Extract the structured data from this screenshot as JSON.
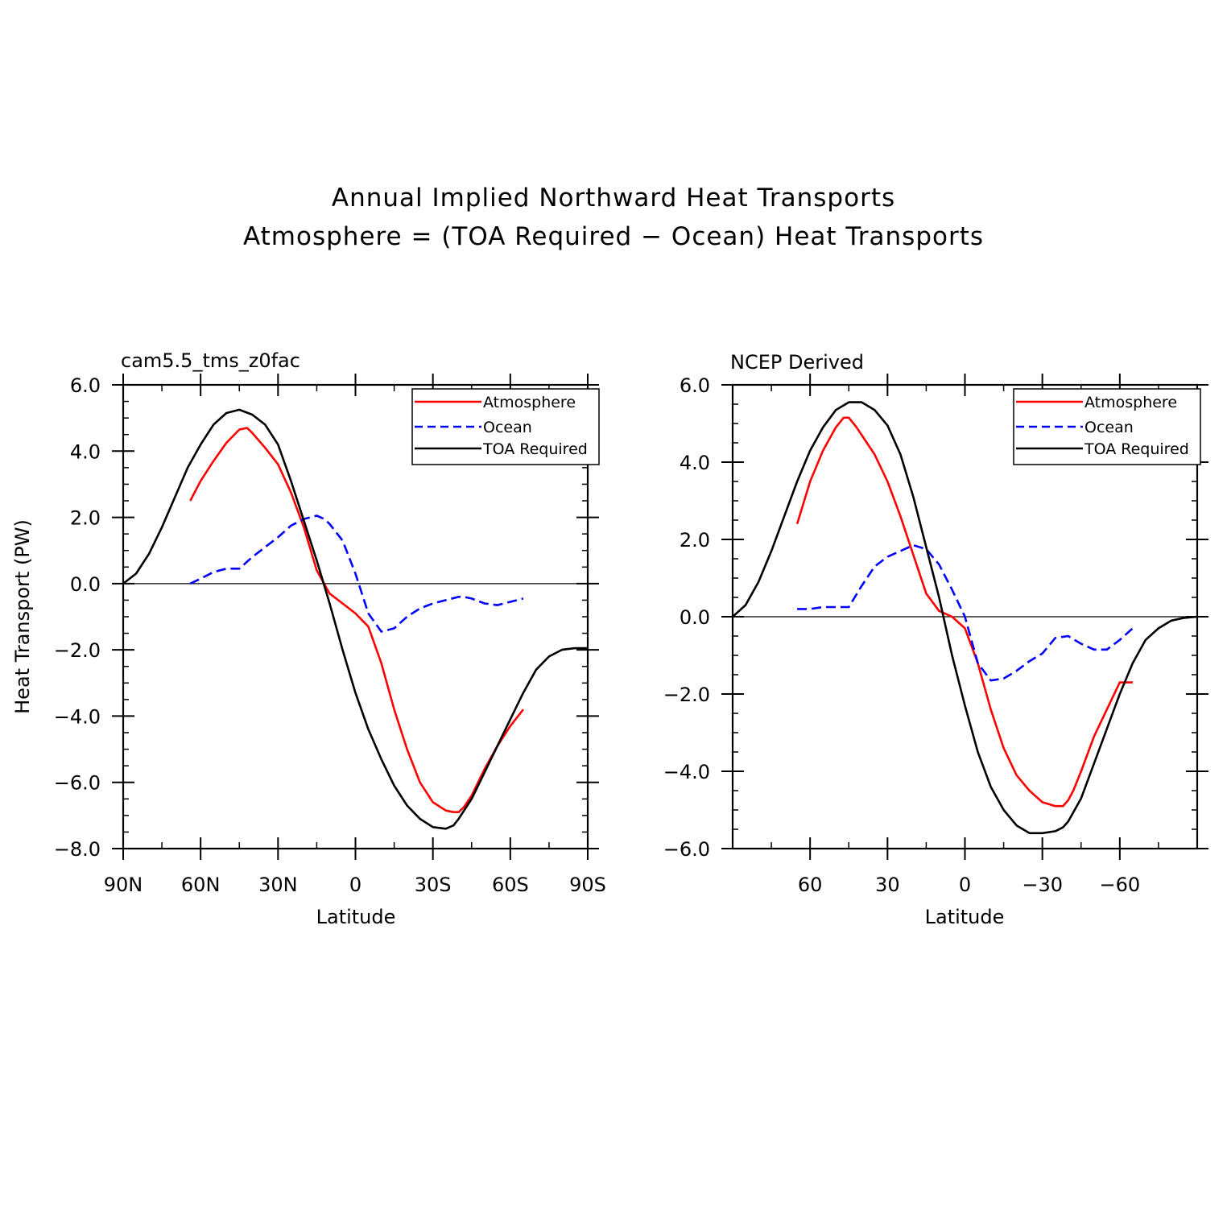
{
  "figure": {
    "title_lines": [
      "Annual Implied Northward Heat Transports",
      "Atmosphere = (TOA Required − Ocean) Heat Transports"
    ]
  },
  "colors": {
    "atmosphere": "#ff0000",
    "ocean": "#0000ff",
    "toa": "#000000"
  },
  "chart_data": [
    {
      "type": "line",
      "title": "cam5.5_tms_z0fac",
      "xlabel": "Latitude",
      "ylabel": "Heat Transport (PW)",
      "xlim": [
        90,
        -90
      ],
      "ylim": [
        -8,
        6
      ],
      "x_ticks": [
        90,
        60,
        30,
        0,
        -30,
        -60,
        -90
      ],
      "x_tick_labels": [
        "90N",
        "60N",
        "30N",
        "0",
        "30S",
        "60S",
        "90S"
      ],
      "y_ticks": [
        6,
        4,
        2,
        0,
        -2,
        -4,
        -6,
        -8
      ],
      "y_tick_labels": [
        "6.0",
        "4.0",
        "2.0",
        "0.0",
        "−2.0",
        "−4.0",
        "−6.0",
        "−8.0"
      ],
      "legend_position": "top-right",
      "series": [
        {
          "name": "Atmosphere",
          "color_key": "atmosphere",
          "dash": false,
          "x": [
            64,
            60,
            55,
            50,
            45,
            42,
            40,
            35,
            30,
            25,
            20,
            15,
            10,
            5,
            0,
            -5,
            -10,
            -15,
            -20,
            -25,
            -30,
            -35,
            -38,
            -40,
            -42,
            -45,
            -50,
            -55,
            -60,
            -65
          ],
          "y": [
            2.5,
            3.1,
            3.7,
            4.25,
            4.65,
            4.7,
            4.55,
            4.1,
            3.6,
            2.75,
            1.7,
            0.4,
            -0.3,
            -0.6,
            -0.9,
            -1.3,
            -2.4,
            -3.8,
            -5.0,
            -6.0,
            -6.6,
            -6.85,
            -6.9,
            -6.9,
            -6.75,
            -6.4,
            -5.6,
            -4.9,
            -4.3,
            -3.8
          ]
        },
        {
          "name": "Ocean",
          "color_key": "ocean",
          "dash": true,
          "x": [
            64,
            60,
            55,
            50,
            45,
            40,
            35,
            30,
            25,
            20,
            15,
            12,
            10,
            5,
            0,
            -5,
            -10,
            -15,
            -20,
            -25,
            -30,
            -35,
            -40,
            -42,
            -45,
            -50,
            -55,
            -60,
            -65
          ],
          "y": [
            0.0,
            0.15,
            0.35,
            0.45,
            0.45,
            0.8,
            1.1,
            1.4,
            1.75,
            1.95,
            2.05,
            1.95,
            1.8,
            1.3,
            0.3,
            -0.9,
            -1.45,
            -1.35,
            -1.0,
            -0.75,
            -0.6,
            -0.5,
            -0.4,
            -0.4,
            -0.45,
            -0.6,
            -0.65,
            -0.55,
            -0.45
          ]
        },
        {
          "name": "TOA Required",
          "color_key": "toa",
          "dash": false,
          "x": [
            90,
            85,
            80,
            75,
            70,
            65,
            60,
            55,
            50,
            45,
            40,
            35,
            30,
            25,
            20,
            15,
            10,
            5,
            0,
            -5,
            -10,
            -15,
            -20,
            -25,
            -30,
            -35,
            -38,
            -40,
            -45,
            -50,
            -55,
            -60,
            -65,
            -70,
            -75,
            -80,
            -85,
            -90
          ],
          "y": [
            0.0,
            0.3,
            0.9,
            1.7,
            2.6,
            3.5,
            4.2,
            4.8,
            5.15,
            5.25,
            5.1,
            4.8,
            4.2,
            3.1,
            1.9,
            0.7,
            -0.6,
            -2.0,
            -3.3,
            -4.4,
            -5.3,
            -6.1,
            -6.7,
            -7.1,
            -7.35,
            -7.4,
            -7.3,
            -7.1,
            -6.5,
            -5.7,
            -4.9,
            -4.1,
            -3.3,
            -2.6,
            -2.2,
            -2.0,
            -1.95,
            -1.95
          ]
        }
      ]
    },
    {
      "type": "line",
      "title": "NCEP Derived",
      "xlabel": "Latitude",
      "ylabel": "",
      "xlim": [
        90,
        -90
      ],
      "ylim": [
        -6,
        6
      ],
      "x_ticks": [
        60,
        30,
        0,
        -30,
        -60
      ],
      "x_tick_labels": [
        "60",
        "30",
        "0",
        "−30",
        "−60"
      ],
      "y_ticks": [
        6,
        4,
        2,
        0,
        -2,
        -4,
        -6
      ],
      "y_tick_labels": [
        "6.0",
        "4.0",
        "2.0",
        "0.0",
        "−2.0",
        "−4.0",
        "−6.0"
      ],
      "legend_position": "top-right",
      "series": [
        {
          "name": "Atmosphere",
          "color_key": "atmosphere",
          "dash": false,
          "x": [
            65,
            60,
            55,
            50,
            47,
            45,
            42,
            38,
            35,
            30,
            25,
            20,
            15,
            10,
            5,
            0,
            -5,
            -10,
            -15,
            -20,
            -25,
            -30,
            -35,
            -38,
            -40,
            -42,
            -45,
            -50,
            -55,
            -60,
            -65
          ],
          "y": [
            2.4,
            3.5,
            4.3,
            4.9,
            5.15,
            5.15,
            4.9,
            4.5,
            4.2,
            3.5,
            2.6,
            1.6,
            0.6,
            0.15,
            0.0,
            -0.3,
            -1.2,
            -2.4,
            -3.4,
            -4.1,
            -4.5,
            -4.8,
            -4.9,
            -4.9,
            -4.75,
            -4.5,
            -4.0,
            -3.1,
            -2.4,
            -1.7,
            -1.7
          ]
        },
        {
          "name": "Ocean",
          "color_key": "ocean",
          "dash": true,
          "x": [
            65,
            60,
            55,
            50,
            45,
            40,
            35,
            30,
            25,
            20,
            15,
            10,
            5,
            0,
            -5,
            -10,
            -15,
            -20,
            -25,
            -30,
            -35,
            -40,
            -45,
            -50,
            -55,
            -60,
            -65
          ],
          "y": [
            0.2,
            0.2,
            0.25,
            0.25,
            0.25,
            0.8,
            1.3,
            1.55,
            1.7,
            1.85,
            1.75,
            1.35,
            0.7,
            0.0,
            -1.2,
            -1.65,
            -1.6,
            -1.4,
            -1.15,
            -0.95,
            -0.55,
            -0.5,
            -0.7,
            -0.85,
            -0.85,
            -0.6,
            -0.3
          ]
        },
        {
          "name": "TOA Required",
          "color_key": "toa",
          "dash": false,
          "x": [
            90,
            85,
            80,
            75,
            70,
            65,
            60,
            55,
            50,
            45,
            40,
            35,
            30,
            25,
            20,
            15,
            10,
            5,
            0,
            -5,
            -10,
            -15,
            -20,
            -25,
            -30,
            -35,
            -38,
            -40,
            -45,
            -50,
            -55,
            -60,
            -65,
            -70,
            -75,
            -80,
            -85,
            -90
          ],
          "y": [
            0.0,
            0.3,
            0.9,
            1.7,
            2.6,
            3.5,
            4.3,
            4.9,
            5.35,
            5.55,
            5.55,
            5.35,
            4.95,
            4.2,
            3.1,
            1.8,
            0.5,
            -1.0,
            -2.3,
            -3.5,
            -4.4,
            -5.0,
            -5.4,
            -5.6,
            -5.6,
            -5.55,
            -5.45,
            -5.3,
            -4.7,
            -3.8,
            -2.9,
            -2.0,
            -1.2,
            -0.6,
            -0.3,
            -0.1,
            -0.03,
            0.0
          ]
        }
      ]
    }
  ]
}
